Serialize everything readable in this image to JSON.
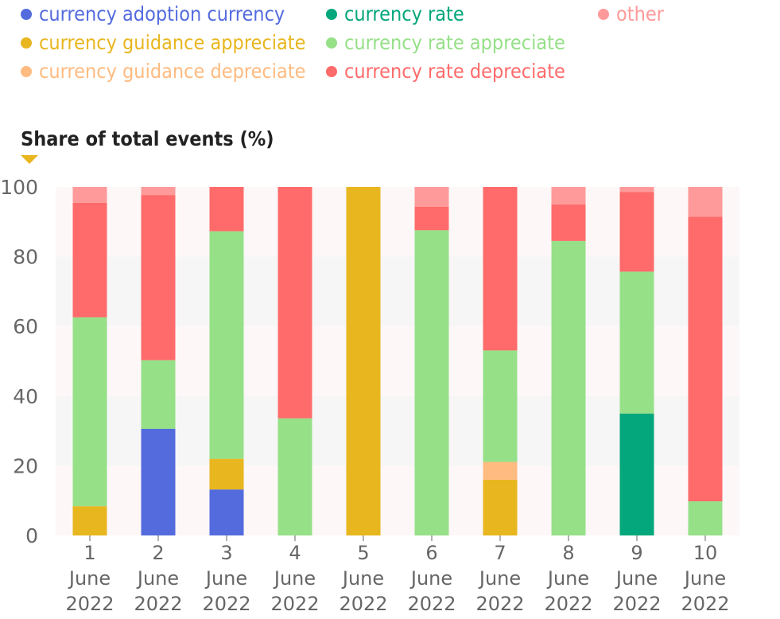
{
  "legend": [
    {
      "label": "currency adoption currency",
      "color": "#546bde"
    },
    {
      "label": "currency rate",
      "color": "#04a77b"
    },
    {
      "label": "other",
      "color": "#ff9a9a"
    },
    {
      "label": "currency guidance appreciate",
      "color": "#e8b61f"
    },
    {
      "label": "currency rate appreciate",
      "color": "#96e088"
    },
    {
      "label": "currency guidance depreciate",
      "color": "#ffbb80"
    },
    {
      "label": "currency rate depreciate",
      "color": "#ff6b6b"
    }
  ],
  "chart_data": {
    "type": "bar",
    "stacked": true,
    "ylabel": "Share of total events (%)",
    "ylim": [
      0,
      100
    ],
    "yticks": [
      0,
      20,
      40,
      60,
      80,
      100
    ],
    "categories": [
      [
        "1",
        "June",
        "2022"
      ],
      [
        "2",
        "June",
        "2022"
      ],
      [
        "3",
        "June",
        "2022"
      ],
      [
        "4",
        "June",
        "2022"
      ],
      [
        "5",
        "June",
        "2022"
      ],
      [
        "6",
        "June",
        "2022"
      ],
      [
        "7",
        "June",
        "2022"
      ],
      [
        "8",
        "June",
        "2022"
      ],
      [
        "9",
        "June",
        "2022"
      ],
      [
        "10",
        "June",
        "2022"
      ]
    ],
    "series": [
      {
        "name": "currency adoption currency",
        "color": "#546bde",
        "values": [
          0,
          30.6,
          13.2,
          0,
          0,
          0,
          0,
          0,
          0,
          0
        ]
      },
      {
        "name": "currency rate",
        "color": "#04a77b",
        "values": [
          0,
          0,
          0,
          0,
          0,
          0,
          0,
          0,
          35.0,
          0
        ]
      },
      {
        "name": "currency guidance appreciate",
        "color": "#e8b61f",
        "values": [
          8.4,
          0,
          8.8,
          0,
          100,
          0,
          16.0,
          0,
          0,
          0
        ]
      },
      {
        "name": "currency guidance depreciate",
        "color": "#ffbb80",
        "values": [
          0,
          0,
          0,
          0,
          0,
          0,
          5.1,
          0,
          0,
          0
        ]
      },
      {
        "name": "currency rate appreciate",
        "color": "#96e088",
        "values": [
          54.2,
          19.7,
          65.3,
          33.6,
          0,
          87.6,
          32.0,
          84.5,
          40.7,
          9.8
        ]
      },
      {
        "name": "currency rate depreciate",
        "color": "#ff6b6b",
        "values": [
          32.9,
          47.4,
          12.7,
          66.4,
          0,
          6.7,
          46.9,
          10.5,
          22.9,
          81.7
        ]
      },
      {
        "name": "other",
        "color": "#ff9a9a",
        "values": [
          4.5,
          2.3,
          0,
          0,
          0,
          5.7,
          0,
          5.0,
          1.4,
          8.5
        ]
      }
    ]
  }
}
